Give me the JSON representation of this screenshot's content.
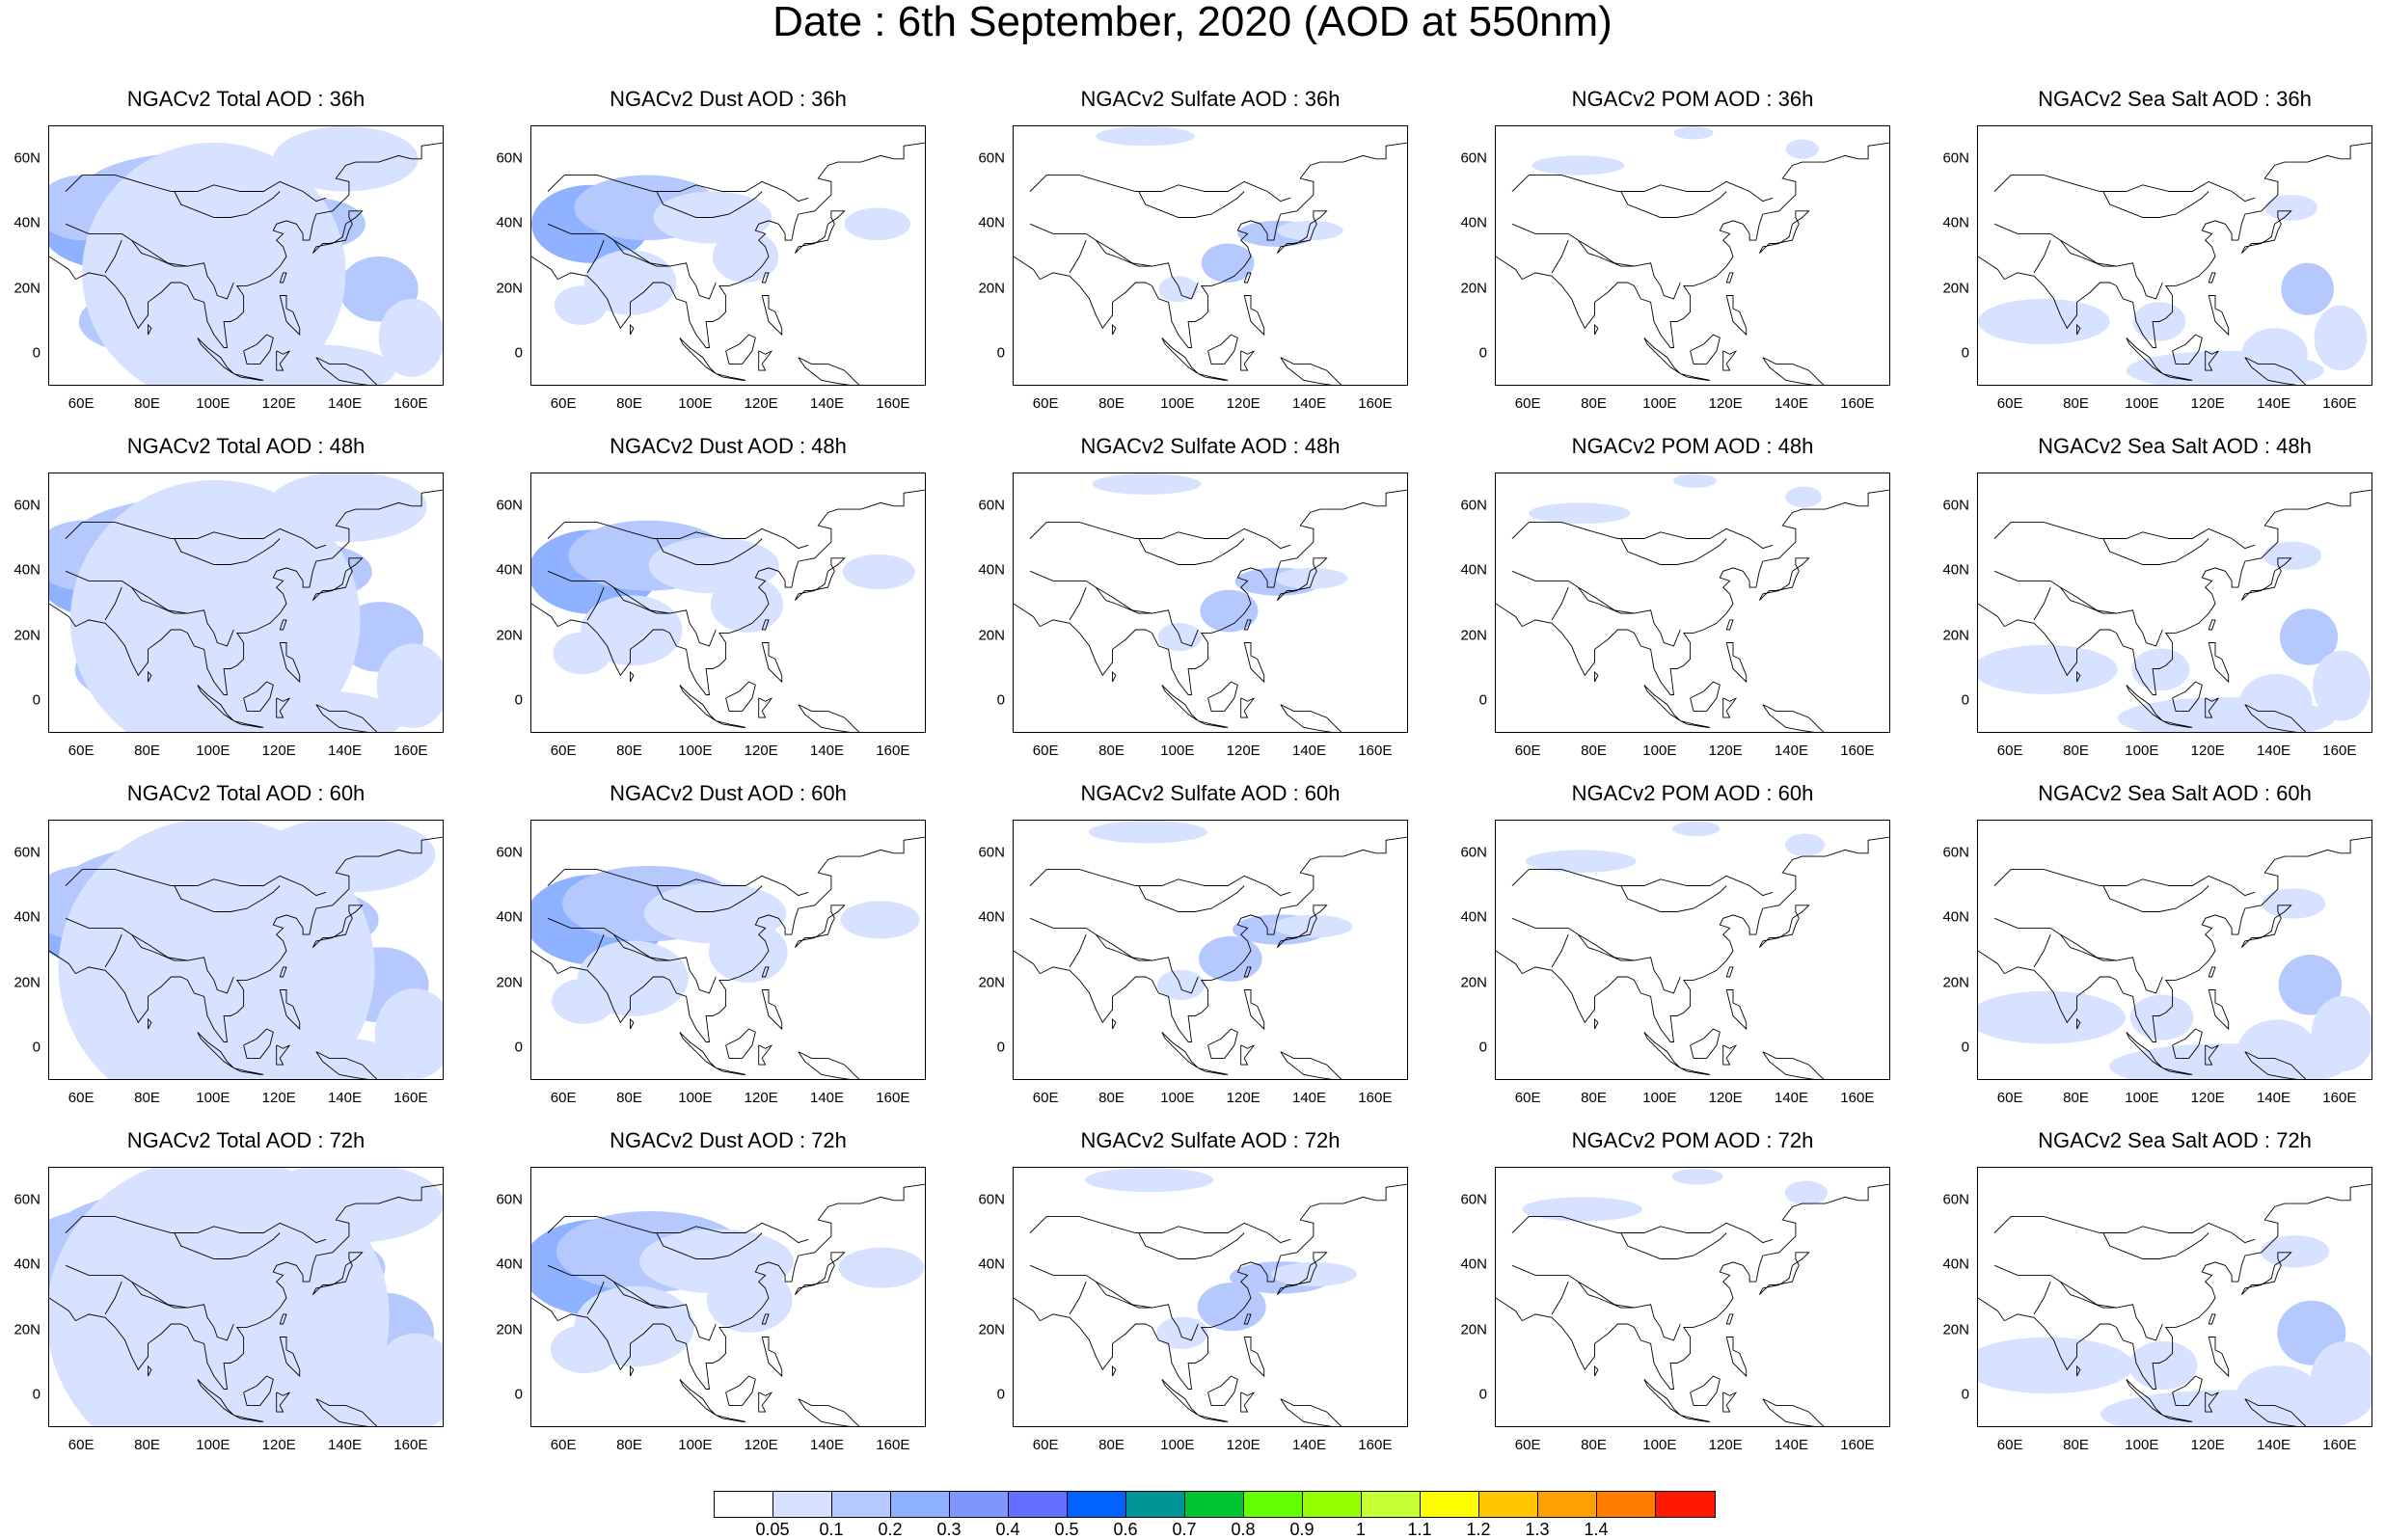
{
  "title": "Date : 6th September, 2020 (AOD at 550nm)",
  "x_ticks": [
    "60E",
    "80E",
    "100E",
    "120E",
    "140E",
    "160E"
  ],
  "y_ticks": [
    "60N",
    "40N",
    "20N",
    "0"
  ],
  "colorbar": {
    "colors": [
      "#ffffff",
      "#d6e2ff",
      "#b5c9ff",
      "#8eb2ff",
      "#7f96ff",
      "#6370ff",
      "#0063ff",
      "#009696",
      "#00c633",
      "#63ff00",
      "#96ff00",
      "#c6ff33",
      "#ffff00",
      "#ffc600",
      "#ffa000",
      "#ff7c00",
      "#ff1900"
    ],
    "labels": [
      "0.05",
      "0.1",
      "0.2",
      "0.3",
      "0.4",
      "0.5",
      "0.6",
      "0.7",
      "0.8",
      "0.9",
      "1",
      "1.1",
      "1.2",
      "1.3",
      "1.4"
    ]
  },
  "map_colors": {
    "light": "#d6e2ff",
    "mid": "#b5c9ff",
    "strong": "#8eb2ff",
    "coast": "#000000"
  },
  "panels": [
    [
      {
        "title": "NGACv2 Total AOD : 36h",
        "level": "total"
      },
      {
        "title": "NGACv2 Dust AOD : 36h",
        "level": "dust"
      },
      {
        "title": "NGACv2 Sulfate AOD : 36h",
        "level": "sulfate"
      },
      {
        "title": "NGACv2 POM AOD : 36h",
        "level": "pom"
      },
      {
        "title": "NGACv2 Sea Salt AOD : 36h",
        "level": "seasalt"
      }
    ],
    [
      {
        "title": "NGACv2 Total AOD : 48h",
        "level": "total"
      },
      {
        "title": "NGACv2 Dust AOD : 48h",
        "level": "dust"
      },
      {
        "title": "NGACv2 Sulfate AOD : 48h",
        "level": "sulfate"
      },
      {
        "title": "NGACv2 POM AOD : 48h",
        "level": "pom"
      },
      {
        "title": "NGACv2 Sea Salt AOD : 48h",
        "level": "seasalt"
      }
    ],
    [
      {
        "title": "NGACv2 Total AOD : 60h",
        "level": "total"
      },
      {
        "title": "NGACv2 Dust AOD : 60h",
        "level": "dust"
      },
      {
        "title": "NGACv2 Sulfate AOD : 60h",
        "level": "sulfate"
      },
      {
        "title": "NGACv2 POM AOD : 60h",
        "level": "pom"
      },
      {
        "title": "NGACv2 Sea Salt AOD : 60h",
        "level": "seasalt"
      }
    ],
    [
      {
        "title": "NGACv2 Total AOD : 72h",
        "level": "total"
      },
      {
        "title": "NGACv2 Dust AOD : 72h",
        "level": "dust"
      },
      {
        "title": "NGACv2 Sulfate AOD : 72h",
        "level": "sulfate"
      },
      {
        "title": "NGACv2 POM AOD : 72h",
        "level": "pom"
      },
      {
        "title": "NGACv2 Sea Salt  AOD : 72h",
        "level": "seasalt"
      }
    ]
  ]
}
